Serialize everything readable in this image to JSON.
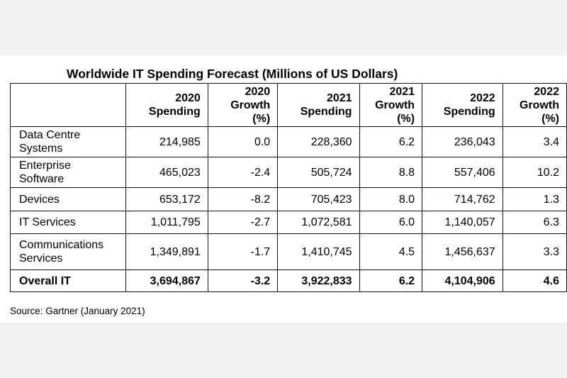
{
  "chart_data": {
    "type": "table",
    "title": "Worldwide IT Spending Forecast (Millions of US Dollars)",
    "columns": [
      "",
      "2020\nSpending",
      "2020\nGrowth\n(%)",
      "2021\nSpending",
      "2021\nGrowth\n(%)",
      "2022\nSpending",
      "2022\nGrowth\n(%)"
    ],
    "rows": [
      {
        "label": "Data Centre\nSystems",
        "cells": [
          "214,985",
          "0.0",
          "228,360",
          "6.2",
          "236,043",
          "3.4"
        ]
      },
      {
        "label": "Enterprise\nSoftware",
        "cells": [
          "465,023",
          "-2.4",
          "505,724",
          "8.8",
          "557,406",
          "10.2"
        ]
      },
      {
        "label": "Devices",
        "cells": [
          "653,172",
          "-8.2",
          "705,423",
          "8.0",
          "714,762",
          "1.3"
        ]
      },
      {
        "label": "IT Services",
        "cells": [
          "1,011,795",
          "-2.7",
          "1,072,581",
          "6.0",
          "1,140,057",
          "6.3"
        ]
      },
      {
        "label": "Communications\nServices",
        "cells": [
          "1,349,891",
          "-1.7",
          "1,410,745",
          "4.5",
          "1,456,637",
          "3.3"
        ]
      },
      {
        "label": "Overall IT",
        "cells": [
          "3,694,867",
          "-3.2",
          "3,922,833",
          "6.2",
          "4,104,906",
          "4.6"
        ],
        "total": true
      }
    ],
    "source": "Source: Gartner (January 2021)"
  }
}
